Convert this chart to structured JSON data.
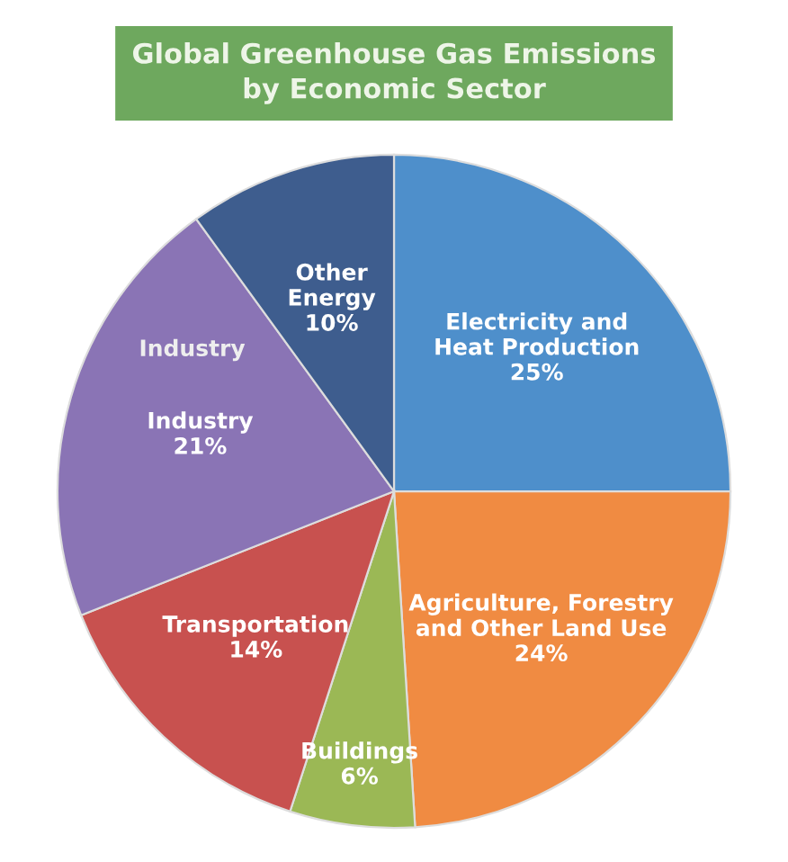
{
  "chart_data": {
    "type": "pie",
    "title": "Global Greenhouse Gas Emissions\nby Economic Sector",
    "categories": [
      "Electricity and\nHeat Production",
      "Agriculture, Forestry\nand Other Land Use",
      "Buildings",
      "Transportation",
      "Industry",
      "Other\nEnergy"
    ],
    "values": [
      25,
      24,
      6,
      14,
      21,
      10
    ],
    "colors": [
      "#4e8fcb",
      "#f08b42",
      "#9bb855",
      "#c8514f",
      "#8a74b5",
      "#3e5d8e"
    ],
    "value_labels": [
      "25%",
      "24%",
      "6%",
      "14%",
      "21%",
      "10%"
    ],
    "annotations": [
      "Industry"
    ]
  }
}
